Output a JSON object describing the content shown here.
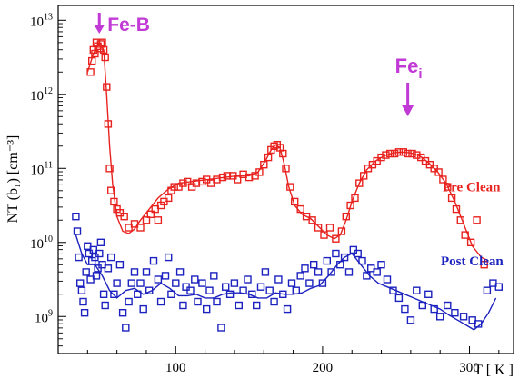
{
  "chart_data": {
    "type": "scatter",
    "xlabel": "T  [ K ]",
    "ylabel": "NT (b₁) [cm⁻³]",
    "xlim": [
      20,
      330
    ],
    "ylim_log10": [
      8.5,
      13.2
    ],
    "y_scale": "log",
    "grid": false,
    "x_ticks": [
      {
        "value": 100,
        "label": "100"
      },
      {
        "value": 200,
        "label": "200"
      },
      {
        "value": 300,
        "label": "300"
      }
    ],
    "y_ticks": [
      {
        "exp": 9,
        "base": "10",
        "sup": "9"
      },
      {
        "exp": 10,
        "base": "10",
        "sup": "10"
      },
      {
        "exp": 11,
        "base": "10",
        "sup": "11"
      },
      {
        "exp": 12,
        "base": "10",
        "sup": "12"
      },
      {
        "exp": 13,
        "base": "10",
        "sup": "13"
      }
    ],
    "annotations": [
      {
        "name": "fe-b",
        "text": "Fe-B",
        "x": 48,
        "color": "#c23ad6"
      },
      {
        "name": "fe-i",
        "text": "Fe",
        "sub": "i",
        "x": 258,
        "color": "#c23ad6"
      }
    ],
    "series": [
      {
        "name": "Pre Clean",
        "color": "#e8231f",
        "points": [
          [
            42,
            12.3
          ],
          [
            43,
            12.45
          ],
          [
            44,
            12.6
          ],
          [
            45,
            12.55
          ],
          [
            46,
            12.7
          ],
          [
            47,
            12.65
          ],
          [
            48,
            12.62
          ],
          [
            49,
            12.68
          ],
          [
            50,
            12.7
          ],
          [
            51,
            12.6
          ],
          [
            52,
            12.5
          ],
          [
            53,
            12.1
          ],
          [
            54,
            11.6
          ],
          [
            55,
            11.0
          ],
          [
            56,
            10.7
          ],
          [
            58,
            10.55
          ],
          [
            60,
            10.45
          ],
          [
            62,
            10.4
          ],
          [
            65,
            10.35
          ],
          [
            68,
            10.2
          ],
          [
            72,
            10.25
          ],
          [
            76,
            10.2
          ],
          [
            80,
            10.3
          ],
          [
            83,
            10.38
          ],
          [
            86,
            10.45
          ],
          [
            88,
            10.3
          ],
          [
            90,
            10.5
          ],
          [
            92,
            10.55
          ],
          [
            95,
            10.6
          ],
          [
            97,
            10.7
          ],
          [
            99,
            10.75
          ],
          [
            102,
            10.75
          ],
          [
            105,
            10.8
          ],
          [
            108,
            10.82
          ],
          [
            111,
            10.75
          ],
          [
            114,
            10.8
          ],
          [
            118,
            10.82
          ],
          [
            121,
            10.85
          ],
          [
            124,
            10.8
          ],
          [
            128,
            10.85
          ],
          [
            132,
            10.88
          ],
          [
            135,
            10.9
          ],
          [
            139,
            10.9
          ],
          [
            142,
            10.85
          ],
          [
            146,
            10.92
          ],
          [
            150,
            10.88
          ],
          [
            154,
            10.9
          ],
          [
            157,
            10.95
          ],
          [
            160,
            11.05
          ],
          [
            163,
            11.15
          ],
          [
            165,
            11.25
          ],
          [
            167,
            11.3
          ],
          [
            169,
            11.32
          ],
          [
            171,
            11.28
          ],
          [
            173,
            11.2
          ],
          [
            175,
            11.0
          ],
          [
            178,
            10.75
          ],
          [
            181,
            10.55
          ],
          [
            185,
            10.45
          ],
          [
            189,
            10.35
          ],
          [
            193,
            10.3
          ],
          [
            197,
            10.2
          ],
          [
            201,
            10.1
          ],
          [
            205,
            10.2
          ],
          [
            209,
            10.05
          ],
          [
            213,
            10.15
          ],
          [
            216,
            10.35
          ],
          [
            219,
            10.5
          ],
          [
            222,
            10.6
          ],
          [
            225,
            10.8
          ],
          [
            228,
            10.9
          ],
          [
            231,
            11.0
          ],
          [
            234,
            11.05
          ],
          [
            237,
            11.1
          ],
          [
            240,
            11.15
          ],
          [
            243,
            11.18
          ],
          [
            246,
            11.2
          ],
          [
            249,
            11.2
          ],
          [
            252,
            11.22
          ],
          [
            255,
            11.22
          ],
          [
            258,
            11.2
          ],
          [
            261,
            11.2
          ],
          [
            264,
            11.18
          ],
          [
            267,
            11.15
          ],
          [
            270,
            11.1
          ],
          [
            273,
            11.05
          ],
          [
            276,
            11.0
          ],
          [
            279,
            10.95
          ],
          [
            282,
            10.85
          ],
          [
            285,
            10.75
          ],
          [
            288,
            10.6
          ],
          [
            291,
            10.45
          ],
          [
            294,
            10.3
          ],
          [
            297,
            10.1
          ],
          [
            301,
            10.0
          ],
          [
            305,
            10.3
          ],
          [
            310,
            9.7
          ]
        ],
        "fit": [
          [
            40,
            12.3
          ],
          [
            44,
            12.55
          ],
          [
            48,
            12.7
          ],
          [
            51,
            12.6
          ],
          [
            53,
            12.0
          ],
          [
            55,
            11.3
          ],
          [
            57,
            10.8
          ],
          [
            60,
            10.35
          ],
          [
            64,
            10.15
          ],
          [
            68,
            10.12
          ],
          [
            72,
            10.18
          ],
          [
            76,
            10.3
          ],
          [
            82,
            10.45
          ],
          [
            88,
            10.6
          ],
          [
            95,
            10.72
          ],
          [
            102,
            10.8
          ],
          [
            110,
            10.82
          ],
          [
            118,
            10.84
          ],
          [
            126,
            10.86
          ],
          [
            134,
            10.88
          ],
          [
            142,
            10.9
          ],
          [
            150,
            10.9
          ],
          [
            156,
            10.95
          ],
          [
            161,
            11.1
          ],
          [
            165,
            11.25
          ],
          [
            168,
            11.32
          ],
          [
            171,
            11.28
          ],
          [
            174,
            11.05
          ],
          [
            177,
            10.75
          ],
          [
            181,
            10.5
          ],
          [
            186,
            10.38
          ],
          [
            192,
            10.32
          ],
          [
            198,
            10.2
          ],
          [
            203,
            10.1
          ],
          [
            208,
            10.05
          ],
          [
            212,
            10.1
          ],
          [
            216,
            10.3
          ],
          [
            220,
            10.55
          ],
          [
            225,
            10.8
          ],
          [
            230,
            10.98
          ],
          [
            236,
            11.1
          ],
          [
            242,
            11.17
          ],
          [
            248,
            11.21
          ],
          [
            254,
            11.22
          ],
          [
            260,
            11.21
          ],
          [
            266,
            11.17
          ],
          [
            272,
            11.08
          ],
          [
            278,
            10.96
          ],
          [
            284,
            10.8
          ],
          [
            290,
            10.55
          ],
          [
            296,
            10.25
          ],
          [
            302,
            9.95
          ],
          [
            308,
            9.8
          ],
          [
            313,
            9.75
          ]
        ]
      },
      {
        "name": "Post Clean",
        "color": "#1c22bf",
        "points": [
          [
            32,
            10.35
          ],
          [
            33,
            10.15
          ],
          [
            34,
            9.8
          ],
          [
            35,
            9.45
          ],
          [
            36,
            9.35
          ],
          [
            37,
            9.2
          ],
          [
            38,
            9.05
          ],
          [
            39,
            9.6
          ],
          [
            40,
            9.95
          ],
          [
            41,
            9.85
          ],
          [
            42,
            9.5
          ],
          [
            43,
            9.75
          ],
          [
            44,
            9.9
          ],
          [
            45,
            9.8
          ],
          [
            46,
            9.55
          ],
          [
            47,
            9.65
          ],
          [
            48,
            9.85
          ],
          [
            49,
            10.0
          ],
          [
            50,
            9.7
          ],
          [
            51,
            9.3
          ],
          [
            52,
            9.15
          ],
          [
            54,
            9.65
          ],
          [
            56,
            9.8
          ],
          [
            58,
            9.3
          ],
          [
            60,
            9.45
          ],
          [
            62,
            9.7
          ],
          [
            64,
            9.05
          ],
          [
            66,
            8.85
          ],
          [
            68,
            9.2
          ],
          [
            70,
            9.45
          ],
          [
            72,
            9.6
          ],
          [
            74,
            9.3
          ],
          [
            76,
            9.45
          ],
          [
            78,
            9.1
          ],
          [
            80,
            9.6
          ],
          [
            82,
            9.35
          ],
          [
            85,
            9.75
          ],
          [
            88,
            9.5
          ],
          [
            90,
            9.2
          ],
          [
            93,
            9.55
          ],
          [
            95,
            9.8
          ],
          [
            97,
            9.3
          ],
          [
            100,
            9.45
          ],
          [
            103,
            9.6
          ],
          [
            105,
            9.15
          ],
          [
            107,
            9.4
          ],
          [
            110,
            9.35
          ],
          [
            113,
            9.5
          ],
          [
            115,
            9.2
          ],
          [
            118,
            9.45
          ],
          [
            121,
            9.1
          ],
          [
            123,
            9.35
          ],
          [
            126,
            9.55
          ],
          [
            128,
            9.2
          ],
          [
            131,
            8.85
          ],
          [
            134,
            9.4
          ],
          [
            137,
            9.3
          ],
          [
            140,
            9.45
          ],
          [
            143,
            9.15
          ],
          [
            146,
            9.35
          ],
          [
            149,
            9.5
          ],
          [
            152,
            9.3
          ],
          [
            155,
            9.15
          ],
          [
            158,
            9.4
          ],
          [
            161,
            9.6
          ],
          [
            164,
            9.35
          ],
          [
            167,
            9.2
          ],
          [
            170,
            9.5
          ],
          [
            173,
            9.3
          ],
          [
            176,
            9.1
          ],
          [
            179,
            9.45
          ],
          [
            182,
            9.35
          ],
          [
            185,
            9.55
          ],
          [
            188,
            9.65
          ],
          [
            191,
            9.45
          ],
          [
            194,
            9.7
          ],
          [
            197,
            9.6
          ],
          [
            200,
            9.45
          ],
          [
            203,
            9.75
          ],
          [
            206,
            9.6
          ],
          [
            209,
            9.85
          ],
          [
            212,
            9.7
          ],
          [
            215,
            9.8
          ],
          [
            218,
            9.6
          ],
          [
            221,
            9.9
          ],
          [
            224,
            9.85
          ],
          [
            227,
            9.75
          ],
          [
            230,
            9.55
          ],
          [
            233,
            9.65
          ],
          [
            237,
            9.6
          ],
          [
            240,
            9.7
          ],
          [
            244,
            9.5
          ],
          [
            248,
            9.35
          ],
          [
            252,
            9.25
          ],
          [
            256,
            9.1
          ],
          [
            260,
            8.95
          ],
          [
            264,
            9.35
          ],
          [
            268,
            9.15
          ],
          [
            272,
            9.3
          ],
          [
            276,
            9.1
          ],
          [
            280,
            9.0
          ],
          [
            285,
            9.15
          ],
          [
            290,
            9.05
          ],
          [
            296,
            9.0
          ],
          [
            302,
            8.95
          ],
          [
            306,
            8.9
          ],
          [
            312,
            9.35
          ],
          [
            316,
            9.45
          ],
          [
            320,
            9.4
          ]
        ],
        "fit": [
          [
            32,
            10.1
          ],
          [
            36,
            9.85
          ],
          [
            40,
            9.7
          ],
          [
            45,
            9.7
          ],
          [
            50,
            9.55
          ],
          [
            55,
            9.35
          ],
          [
            60,
            9.25
          ],
          [
            66,
            9.35
          ],
          [
            72,
            9.38
          ],
          [
            78,
            9.3
          ],
          [
            84,
            9.35
          ],
          [
            90,
            9.45
          ],
          [
            96,
            9.38
          ],
          [
            102,
            9.28
          ],
          [
            108,
            9.28
          ],
          [
            114,
            9.3
          ],
          [
            120,
            9.25
          ],
          [
            126,
            9.25
          ],
          [
            132,
            9.3
          ],
          [
            138,
            9.32
          ],
          [
            144,
            9.32
          ],
          [
            150,
            9.3
          ],
          [
            156,
            9.25
          ],
          [
            162,
            9.25
          ],
          [
            168,
            9.32
          ],
          [
            174,
            9.3
          ],
          [
            180,
            9.3
          ],
          [
            186,
            9.32
          ],
          [
            192,
            9.38
          ],
          [
            198,
            9.42
          ],
          [
            204,
            9.55
          ],
          [
            210,
            9.7
          ],
          [
            215,
            9.8
          ],
          [
            220,
            9.85
          ],
          [
            226,
            9.7
          ],
          [
            232,
            9.55
          ],
          [
            238,
            9.45
          ],
          [
            244,
            9.4
          ],
          [
            250,
            9.35
          ],
          [
            256,
            9.3
          ],
          [
            262,
            9.25
          ],
          [
            268,
            9.2
          ],
          [
            274,
            9.15
          ],
          [
            280,
            9.1
          ],
          [
            286,
            9.02
          ],
          [
            292,
            8.95
          ],
          [
            298,
            8.88
          ],
          [
            303,
            8.82
          ],
          [
            308,
            8.9
          ],
          [
            313,
            9.05
          ],
          [
            318,
            9.25
          ]
        ]
      }
    ]
  }
}
